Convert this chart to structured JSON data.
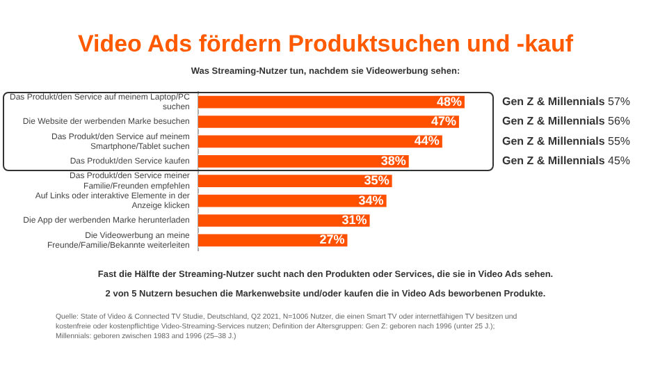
{
  "chart_data": {
    "type": "bar",
    "orientation": "horizontal",
    "title": "Video Ads fördern Produktsuchen und -kauf",
    "subtitle": "Was Streaming-Nutzer tun, nachdem sie Videowerbung sehen:",
    "categories": [
      "Das Produkt/den Service auf meinem Laptop/PC suchen",
      "Die Website der werbenden Marke besuchen",
      "Das Produkt/den Service auf meinem Smartphone/Tablet suchen",
      "Das Produkt/den Service kaufen",
      "Das Produkt/den Service meiner Familie/Freunden empfehlen",
      "Auf Links oder interaktive Elemente in der Anzeige klicken",
      "Die App der werbenden Marke herunterladen",
      "Die Videowerbung an meine Freunde/Familie/Bekannte weiterleiten"
    ],
    "values": [
      48,
      47,
      44,
      38,
      35,
      34,
      31,
      27
    ],
    "value_labels": [
      "48%",
      "47%",
      "44%",
      "38%",
      "35%",
      "34%",
      "31%",
      "27%"
    ],
    "color": "#ff5000",
    "grid": false,
    "legend": false,
    "annotations": [
      "Gen Z & Millennials 57%",
      "Gen Z & Millennials 56%",
      "Gen Z & Millennials 55%",
      "Gen Z & Millennials 45%",
      "Fast die Hälfte der Streaming-Nutzer sucht nach den Produkten oder Services, die sie in Video Ads sehen.",
      "2 von 5 Nutzern besuchen die Markenwebsite und/oder kaufen die in Video Ads beworbenen Produkte.",
      "Quelle: State of Video & Connected TV Studie, Deutschland, Q2 2021, N=1006 Nutzer, die einen Smart TV oder internetfähigen TV besitzen und kostenfreie oder kostenpflichtige Video-Streaming-Services nutzen; Definition der Altersgruppen: Gen Z: geboren nach 1996 (unter 25 J.); Millennials: geboren zwischen 1983 and 1996 (25–38 J.)"
    ]
  }
}
